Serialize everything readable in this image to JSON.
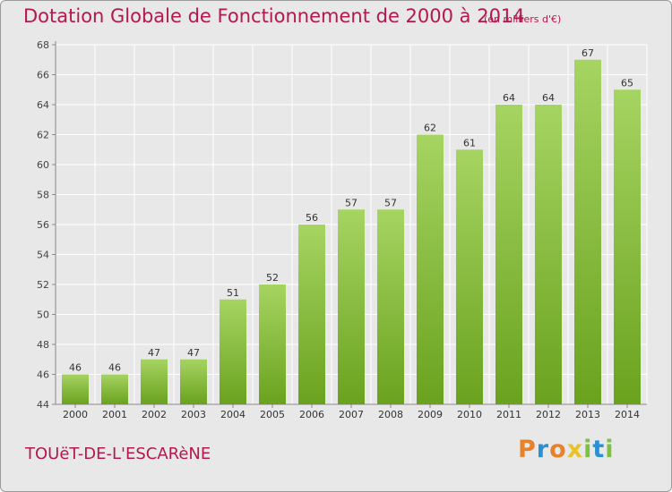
{
  "title": "Dotation Globale de Fonctionnement de 2000 à 2014",
  "subtitle": "(en milliers d'€)",
  "commune": "TOUëT-DE-L'ESCARèNE",
  "logo": {
    "letters": [
      "P",
      "r",
      "o",
      "x",
      "i",
      "t",
      "i"
    ],
    "colors": [
      "#e8822a",
      "#2b8fd4",
      "#e8822a",
      "#e8c22a",
      "#7cc242",
      "#2b8fd4",
      "#7cc242"
    ]
  },
  "colors": {
    "bar_top": "#a6d462",
    "bar_bottom": "#6aa21e",
    "text_accent": "#b5174f",
    "grid": "#ffffff",
    "plot_bg": "#e8e8e8"
  },
  "chart_data": {
    "type": "bar",
    "title": "Dotation Globale de Fonctionnement de 2000 à 2014",
    "unit": "(en milliers d'€)",
    "categories": [
      "2000",
      "2001",
      "2002",
      "2003",
      "2004",
      "2005",
      "2006",
      "2007",
      "2008",
      "2009",
      "2010",
      "2011",
      "2012",
      "2013",
      "2014"
    ],
    "values": [
      46,
      46,
      47,
      47,
      51,
      52,
      56,
      57,
      57,
      62,
      61,
      64,
      64,
      67,
      65
    ],
    "ylim": [
      44,
      68
    ],
    "yticks": [
      44,
      46,
      48,
      50,
      52,
      54,
      56,
      58,
      60,
      62,
      64,
      66,
      68
    ],
    "grid": true,
    "xlabel": "",
    "ylabel": ""
  }
}
